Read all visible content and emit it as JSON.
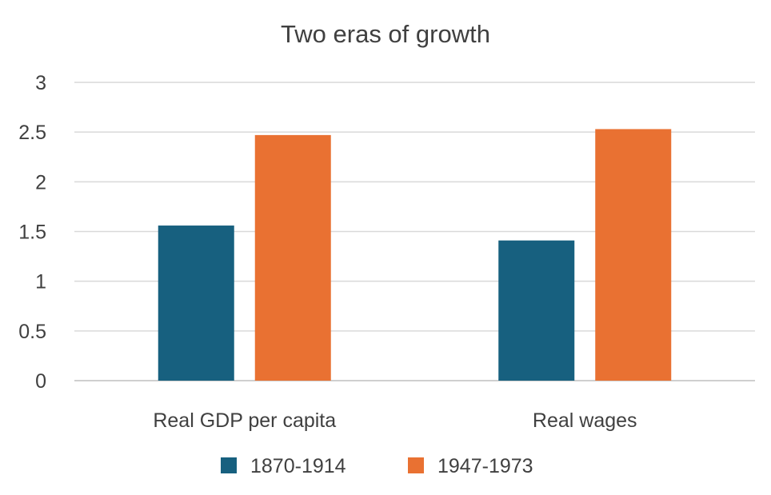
{
  "chart_data": {
    "type": "bar",
    "title": "Two eras of growth",
    "xlabel": "",
    "ylabel": "",
    "categories": [
      "Real GDP per capita",
      "Real wages"
    ],
    "series": [
      {
        "name": "1870-1914",
        "values": [
          1.56,
          1.41
        ],
        "color": "#17607f"
      },
      {
        "name": "1947-1973",
        "values": [
          2.47,
          2.53
        ],
        "color": "#e97132"
      }
    ],
    "ylim": [
      0,
      3
    ],
    "yticks": [
      "0",
      "0.5",
      "1",
      "1.5",
      "2",
      "2.5",
      "3"
    ],
    "grid": true,
    "legend_position": "bottom"
  }
}
